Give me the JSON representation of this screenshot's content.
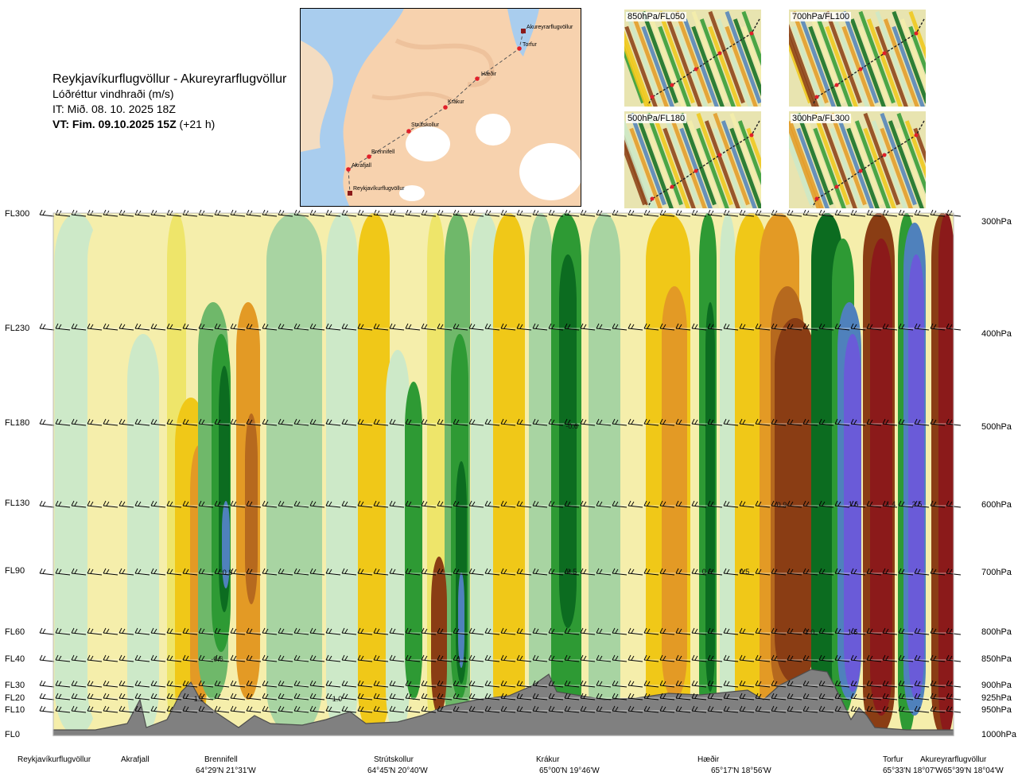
{
  "header": {
    "route": "Reykjavíkurflugvöllur - Akureyrarflugvöllur",
    "quantity": "Lóðréttur vindhraði (m/s)",
    "it_line": "IT: Mið. 08. 10. 2025 18Z",
    "vt_bold": "VT: Fim. 09.10.2025 15Z",
    "vt_rest": " (+21 h)"
  },
  "map": {
    "waypoints": [
      "Akureyrarflugvöllur",
      "Torfur",
      "Hæðir",
      "Krákur",
      "Strútskollur",
      "Brennifell",
      "Akrafjall",
      "Reykjavíkurflugvöllur"
    ],
    "colors": {
      "sea": "#a9cdee",
      "land": "#f7d2ae",
      "ice": "#ffffff",
      "route": "#555555",
      "point": "#e0202a"
    }
  },
  "thumbnails": [
    {
      "label": "850hPa/FL050"
    },
    {
      "label": "700hPa/FL100"
    },
    {
      "label": "500hPa/FL180"
    },
    {
      "label": "300hPa/FL300"
    }
  ],
  "chart_data": {
    "type": "heatmap",
    "title": "Lóðréttur vindhraði (m/s)",
    "x_axis": {
      "stations": [
        "Reykjavíkurflugvöllur",
        "Akrafjall",
        "Brennifell",
        "Strútskollur",
        "Krákur",
        "Hæðir",
        "Torfur",
        "Akureyrarflugvöllur"
      ],
      "coordinates": [
        "64°29'N 21°31'W",
        "64°45'N 20°40'W",
        "65°00'N 19°46'W",
        "65°17'N 18°56'W",
        "65°33'N 18°07'W",
        "65°39'N 18°04'W"
      ]
    },
    "y_axis_left": [
      "FL300",
      "FL230",
      "FL180",
      "FL130",
      "FL90",
      "FL60",
      "FL40",
      "FL30",
      "FL20",
      "FL10",
      "FL0"
    ],
    "y_axis_right": [
      "300hPa",
      "400hPa",
      "500hPa",
      "600hPa",
      "700hPa",
      "800hPa",
      "850hPa",
      "900hPa",
      "925hPa",
      "950hPa",
      "1000hPa"
    ],
    "contour_labels": [
      "1.1",
      "-0.6",
      "0.8",
      "1.0",
      "1.1",
      "-0.6",
      "0.5",
      "0.6",
      "0.5",
      "0.9",
      "1.6",
      "1.4",
      "2.5",
      "1.0",
      "1.5"
    ],
    "colors": {
      "pos_strong": "#8b1a1a",
      "pos_mid": "#8a3d14",
      "pos_light": "#b6691e",
      "pos_orange": "#e39a25",
      "pos_yellow": "#f0c818",
      "pos_pale": "#eee56a",
      "pos_cream": "#f5eeab",
      "neg_pale": "#cde9c8",
      "neg_light": "#a8d4a2",
      "neg_mid": "#6fb86a",
      "neg_green": "#2e9a34",
      "neg_dark": "#0c6c20",
      "neg_blue": "#4f81bc",
      "neg_violet": "#6a5bd8",
      "terrain": "#808080"
    }
  }
}
